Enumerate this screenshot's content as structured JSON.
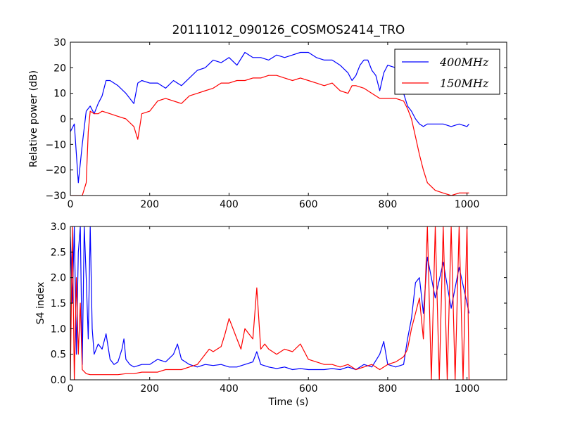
{
  "figure": {
    "title": "20111012_090126_COSMOS2414_TRO"
  },
  "chart_data": [
    {
      "type": "line",
      "title": "20111012_090126_COSMOS2414_TRO",
      "xlabel": "",
      "ylabel": "Relative power (dB)",
      "xlim": [
        0,
        1100
      ],
      "ylim": [
        -30,
        30
      ],
      "xticks": [
        "0",
        "200",
        "400",
        "600",
        "800",
        "1000"
      ],
      "yticks": [
        "−30",
        "−20",
        "−10",
        "0",
        "10",
        "20",
        "30"
      ],
      "grid": false,
      "legend_position": "top-right",
      "legend": [
        "400MHz",
        "150MHz"
      ],
      "series": [
        {
          "name": "400MHz",
          "color": "#0000ff",
          "x": [
            0,
            10,
            20,
            30,
            40,
            50,
            60,
            70,
            80,
            90,
            100,
            120,
            140,
            160,
            170,
            180,
            200,
            220,
            240,
            260,
            280,
            300,
            320,
            340,
            360,
            380,
            400,
            420,
            440,
            460,
            480,
            500,
            520,
            540,
            560,
            580,
            600,
            620,
            640,
            660,
            680,
            700,
            710,
            720,
            730,
            740,
            750,
            760,
            770,
            780,
            790,
            800,
            820,
            840,
            850,
            860,
            870,
            880,
            890,
            900,
            920,
            940,
            960,
            980,
            1000,
            1005
          ],
          "values": [
            -5,
            -2,
            -25,
            -10,
            3,
            5,
            2,
            6,
            9,
            15,
            15,
            13,
            10,
            6,
            14,
            15,
            14,
            14,
            12,
            15,
            13,
            16,
            19,
            20,
            23,
            22,
            24,
            21,
            26,
            24,
            24,
            23,
            25,
            24,
            25,
            26,
            26,
            24,
            23,
            23,
            21,
            18,
            15,
            17,
            21,
            23,
            23,
            19,
            17,
            11,
            18,
            21,
            20,
            10,
            5,
            3,
            0,
            -2,
            -3,
            -2,
            -2,
            -2,
            -3,
            -2,
            -3,
            -2
          ]
        },
        {
          "name": "150MHz",
          "color": "#ff0000",
          "x": [
            0,
            10,
            20,
            30,
            40,
            45,
            50,
            60,
            70,
            80,
            100,
            120,
            140,
            160,
            170,
            180,
            200,
            220,
            240,
            260,
            280,
            300,
            320,
            340,
            360,
            380,
            400,
            420,
            440,
            460,
            480,
            500,
            520,
            540,
            560,
            580,
            600,
            620,
            640,
            660,
            680,
            700,
            710,
            720,
            740,
            760,
            780,
            800,
            820,
            840,
            850,
            860,
            870,
            880,
            890,
            900,
            920,
            940,
            960,
            980,
            1000,
            1005
          ],
          "values": [
            -30,
            -30,
            -30,
            -30,
            -25,
            -5,
            3,
            2,
            2,
            3,
            2,
            1,
            0,
            -3,
            -8,
            2,
            3,
            7,
            8,
            7,
            6,
            9,
            10,
            11,
            12,
            14,
            14,
            15,
            15,
            16,
            16,
            17,
            17,
            16,
            15,
            16,
            15,
            14,
            13,
            14,
            11,
            10,
            13,
            13,
            12,
            10,
            8,
            8,
            8,
            7,
            4,
            0,
            -7,
            -14,
            -20,
            -25,
            -28,
            -29,
            -30,
            -29,
            -29,
            -29
          ]
        }
      ]
    },
    {
      "type": "line",
      "title": "",
      "xlabel": "Time (s)",
      "ylabel": "S4 index",
      "xlim": [
        0,
        1100
      ],
      "ylim": [
        0.0,
        3.0
      ],
      "xticks": [
        "0",
        "200",
        "400",
        "600",
        "800",
        "1000"
      ],
      "yticks": [
        "0.0",
        "0.5",
        "1.0",
        "1.5",
        "2.0",
        "2.5",
        "3.0"
      ],
      "grid": false,
      "series": [
        {
          "name": "400MHz",
          "color": "#0000ff",
          "x": [
            0,
            5,
            10,
            15,
            20,
            25,
            30,
            35,
            40,
            45,
            50,
            55,
            60,
            70,
            80,
            90,
            100,
            110,
            120,
            130,
            135,
            140,
            150,
            160,
            180,
            200,
            220,
            240,
            260,
            270,
            280,
            300,
            320,
            340,
            360,
            380,
            400,
            420,
            440,
            460,
            470,
            480,
            500,
            520,
            540,
            560,
            580,
            600,
            620,
            640,
            660,
            680,
            700,
            720,
            740,
            760,
            780,
            790,
            800,
            820,
            840,
            850,
            860,
            870,
            880,
            890,
            900,
            920,
            940,
            960,
            980,
            1000,
            1005
          ],
          "values": [
            2.8,
            1.5,
            3.0,
            0.5,
            2.5,
            3.0,
            0.3,
            3.0,
            2.0,
            0.8,
            3.0,
            1.0,
            0.5,
            0.7,
            0.6,
            0.9,
            0.4,
            0.3,
            0.35,
            0.6,
            0.8,
            0.4,
            0.3,
            0.25,
            0.3,
            0.3,
            0.4,
            0.35,
            0.5,
            0.7,
            0.4,
            0.3,
            0.25,
            0.3,
            0.28,
            0.3,
            0.25,
            0.25,
            0.3,
            0.35,
            0.55,
            0.3,
            0.25,
            0.22,
            0.25,
            0.2,
            0.22,
            0.2,
            0.2,
            0.2,
            0.22,
            0.2,
            0.25,
            0.2,
            0.3,
            0.25,
            0.5,
            0.75,
            0.3,
            0.25,
            0.3,
            0.8,
            1.2,
            1.9,
            2.0,
            1.3,
            2.4,
            1.6,
            2.3,
            1.4,
            2.2,
            1.5,
            1.3
          ]
        },
        {
          "name": "150MHz",
          "color": "#ff0000",
          "x": [
            0,
            5,
            10,
            15,
            20,
            25,
            30,
            40,
            50,
            60,
            80,
            100,
            120,
            140,
            160,
            180,
            200,
            220,
            240,
            260,
            280,
            300,
            320,
            340,
            350,
            360,
            380,
            390,
            400,
            420,
            430,
            440,
            450,
            460,
            470,
            480,
            490,
            500,
            520,
            540,
            560,
            580,
            600,
            620,
            640,
            660,
            680,
            700,
            720,
            740,
            760,
            780,
            800,
            820,
            840,
            850,
            860,
            870,
            880,
            890,
            900,
            910,
            920,
            930,
            940,
            950,
            960,
            970,
            980,
            990,
            1000,
            1005
          ],
          "values": [
            0.0,
            3.0,
            0.0,
            2.0,
            0.5,
            1.5,
            0.2,
            0.12,
            0.1,
            0.1,
            0.1,
            0.1,
            0.1,
            0.12,
            0.12,
            0.15,
            0.15,
            0.15,
            0.2,
            0.2,
            0.2,
            0.25,
            0.3,
            0.5,
            0.6,
            0.55,
            0.65,
            0.9,
            1.2,
            0.8,
            0.6,
            1.0,
            0.9,
            0.8,
            1.8,
            0.6,
            0.7,
            0.6,
            0.5,
            0.6,
            0.55,
            0.7,
            0.4,
            0.35,
            0.3,
            0.3,
            0.25,
            0.3,
            0.2,
            0.25,
            0.3,
            0.2,
            0.3,
            0.35,
            0.45,
            0.6,
            1.0,
            1.3,
            1.6,
            0.8,
            3.0,
            0.0,
            3.0,
            0.0,
            3.0,
            0.0,
            3.0,
            0.0,
            3.0,
            0.0,
            3.0,
            0.0
          ]
        }
      ]
    }
  ]
}
